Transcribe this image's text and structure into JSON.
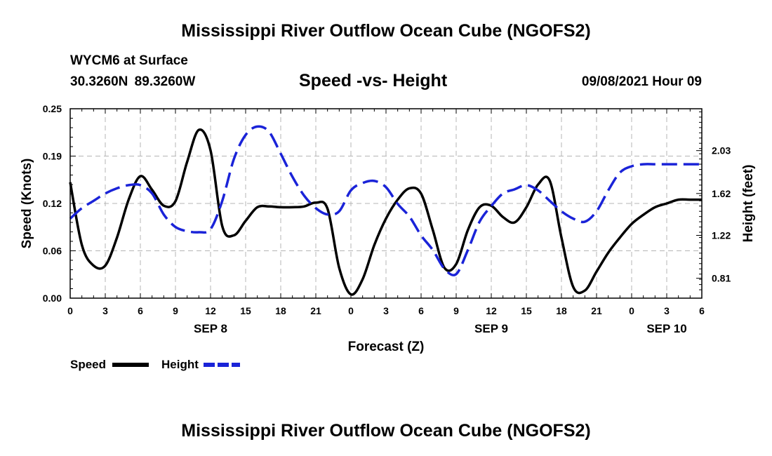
{
  "header": {
    "title_top": "Mississippi River Outflow Ocean Cube (NGOFS2)",
    "station": "WYCM6 at Surface",
    "coords": "30.3260N  89.3260W",
    "chart_title": "Speed -vs- Height",
    "timestamp": "09/08/2021 Hour 09"
  },
  "footer": {
    "title_bottom": "Mississippi River Outflow Ocean Cube (NGOFS2)"
  },
  "chart_data": {
    "type": "line",
    "title": "Speed -vs- Height",
    "xlabel": "Forecast (Z)",
    "ylabel": "Speed (Knots)",
    "y2label": "Height (feet)",
    "xlim": [
      0,
      54
    ],
    "ylim": [
      0,
      0.25
    ],
    "y2lim": [
      0.62,
      2.43
    ],
    "x_tick_labels": [
      "0",
      "3",
      "6",
      "9",
      "12",
      "15",
      "18",
      "21",
      "0",
      "3",
      "6",
      "9",
      "12",
      "15",
      "18",
      "21",
      "0",
      "3",
      "6"
    ],
    "date_labels": [
      {
        "label": "SEP 8",
        "x": 12
      },
      {
        "label": "SEP 9",
        "x": 36
      },
      {
        "label": "SEP 10",
        "x": 51
      }
    ],
    "y_ticks": [
      "0.00",
      "0.06",
      "0.12",
      "0.19",
      "0.25"
    ],
    "y_tick_values": [
      0,
      0.0625,
      0.125,
      0.1875,
      0.25
    ],
    "y2_ticks": [
      "0.81",
      "1.22",
      "1.62",
      "2.03"
    ],
    "y2_tick_values": [
      0.81,
      1.22,
      1.62,
      2.03
    ],
    "grid": true,
    "legend_position": "bottom-left",
    "series": [
      {
        "name": "Speed",
        "color": "#000000",
        "dash": "solid",
        "axis": "left",
        "x": [
          0,
          1,
          2,
          3,
          4,
          5,
          6,
          7,
          8,
          9,
          10,
          11,
          12,
          13,
          14,
          15,
          16,
          17,
          18,
          19,
          20,
          21,
          22,
          23,
          24,
          25,
          26,
          27,
          28,
          29,
          30,
          31,
          32,
          33,
          34,
          35,
          36,
          37,
          38,
          39,
          40,
          41,
          42,
          43,
          44,
          45,
          46,
          47,
          48,
          49,
          50,
          51,
          52,
          53,
          54
        ],
        "values": [
          0.153,
          0.07,
          0.043,
          0.043,
          0.08,
          0.13,
          0.161,
          0.143,
          0.122,
          0.128,
          0.18,
          0.222,
          0.195,
          0.095,
          0.083,
          0.102,
          0.12,
          0.121,
          0.12,
          0.12,
          0.121,
          0.126,
          0.118,
          0.04,
          0.005,
          0.025,
          0.07,
          0.105,
          0.13,
          0.145,
          0.138,
          0.09,
          0.04,
          0.045,
          0.09,
          0.12,
          0.122,
          0.107,
          0.1,
          0.12,
          0.15,
          0.155,
          0.08,
          0.015,
          0.01,
          0.035,
          0.06,
          0.08,
          0.098,
          0.11,
          0.12,
          0.125,
          0.13,
          0.13,
          0.13
        ]
      },
      {
        "name": "Height",
        "color": "#1a23d8",
        "dash": "dashed",
        "axis": "right",
        "x": [
          0,
          1,
          2,
          3,
          4,
          5,
          6,
          7,
          8,
          9,
          10,
          11,
          12,
          13,
          14,
          15,
          16,
          17,
          18,
          19,
          20,
          21,
          22,
          23,
          24,
          25,
          26,
          27,
          28,
          29,
          30,
          31,
          32,
          33,
          34,
          35,
          36,
          37,
          38,
          39,
          40,
          41,
          42,
          43,
          44,
          45,
          46,
          47,
          48,
          49,
          50,
          51,
          52,
          53,
          54
        ],
        "values": [
          1.38,
          1.48,
          1.55,
          1.62,
          1.67,
          1.7,
          1.7,
          1.62,
          1.42,
          1.3,
          1.26,
          1.25,
          1.28,
          1.55,
          1.95,
          2.18,
          2.26,
          2.21,
          2.0,
          1.78,
          1.6,
          1.48,
          1.42,
          1.45,
          1.65,
          1.72,
          1.74,
          1.68,
          1.52,
          1.4,
          1.22,
          1.08,
          0.9,
          0.85,
          1.08,
          1.35,
          1.5,
          1.62,
          1.66,
          1.7,
          1.65,
          1.55,
          1.45,
          1.38,
          1.35,
          1.45,
          1.65,
          1.82,
          1.88,
          1.9,
          1.9,
          1.9,
          1.9,
          1.9,
          1.9
        ]
      }
    ]
  }
}
